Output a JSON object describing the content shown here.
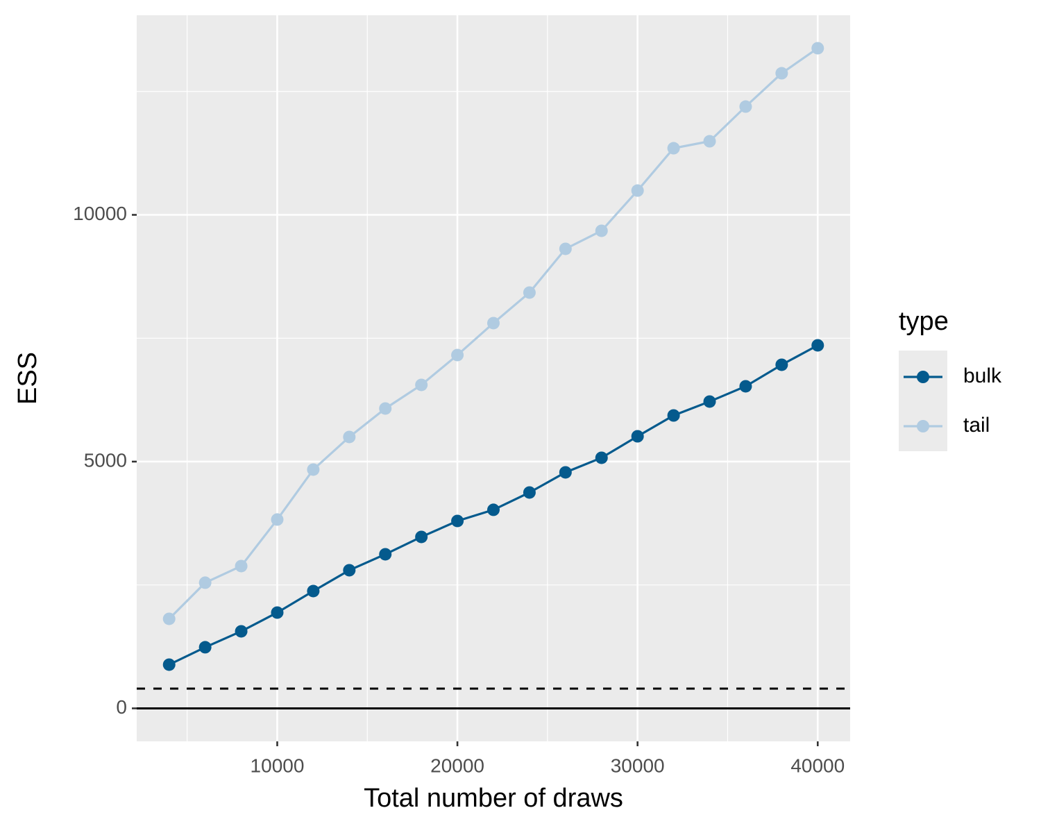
{
  "chart_data": {
    "type": "line",
    "xlabel": "Total number of draws",
    "ylabel": "ESS",
    "legend_title": "type",
    "legend_position": "right",
    "grid": true,
    "x": [
      4000,
      6000,
      8000,
      10000,
      12000,
      14000,
      16000,
      18000,
      20000,
      22000,
      24000,
      26000,
      28000,
      30000,
      32000,
      34000,
      36000,
      38000,
      40000
    ],
    "series": [
      {
        "name": "bulk",
        "color": "#045a8d",
        "values": [
          886,
          1238,
          1561,
          1941,
          2377,
          2799,
          3122,
          3474,
          3797,
          4023,
          4374,
          4782,
          5077,
          5513,
          5935,
          6217,
          6526,
          6962,
          7356
        ]
      },
      {
        "name": "tail",
        "color": "#b0cbe1",
        "values": [
          1814,
          2546,
          2883,
          3826,
          4838,
          5499,
          6076,
          6554,
          7159,
          7806,
          8425,
          9311,
          9677,
          10492,
          11350,
          11491,
          12194,
          12869,
          13376
        ]
      }
    ],
    "hlines": [
      {
        "y": 0,
        "linetype": "solid"
      },
      {
        "y": 400,
        "linetype": "dashed"
      }
    ],
    "xlim": [
      2200,
      41800
    ],
    "ylim": [
      -669,
      14044
    ],
    "xticks": [
      10000,
      20000,
      30000,
      40000
    ],
    "yticks": [
      0,
      5000,
      10000
    ],
    "xminor": [
      5000,
      15000,
      25000,
      35000
    ],
    "yminor": [
      2500,
      7500,
      12500
    ]
  }
}
